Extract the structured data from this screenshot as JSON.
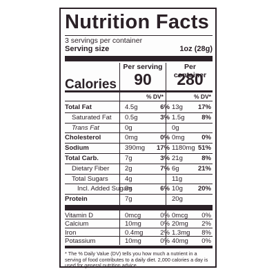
{
  "title": "Nutrition Facts",
  "servings_per_container": "3 servings per container",
  "serving_size_label": "Serving size",
  "serving_size_value": "1oz (28g)",
  "calories_label": "Calories",
  "per_serving_label": "Per serving",
  "per_container_label": "Per container",
  "calories_per_serving": "90",
  "calories_per_container": "280",
  "dv_header": "% DV*",
  "nutrients": [
    {
      "name": "Total Fat",
      "style": "bold",
      "serving_amount": "4.5g",
      "serving_dv": "6%",
      "container_amount": "13g",
      "container_dv": "17%"
    },
    {
      "name": "Saturated Fat",
      "style": "indent",
      "serving_amount": "0.5g",
      "serving_dv": "3%",
      "container_amount": "1.5g",
      "container_dv": "8%"
    },
    {
      "name": "Trans Fat",
      "style": "indent-italic",
      "serving_amount": "0g",
      "serving_dv": "",
      "container_amount": "0g",
      "container_dv": ""
    },
    {
      "name": "Cholesterol",
      "style": "bold",
      "serving_amount": "0mg",
      "serving_dv": "0%",
      "container_amount": "0mg",
      "container_dv": "0%"
    },
    {
      "name": "Sodium",
      "style": "bold",
      "serving_amount": "390mg",
      "serving_dv": "17%",
      "container_amount": "1180mg",
      "container_dv": "51%"
    },
    {
      "name": "Total Carb.",
      "style": "bold",
      "serving_amount": "7g",
      "serving_dv": "3%",
      "container_amount": "21g",
      "container_dv": "8%"
    },
    {
      "name": "Dietary Fiber",
      "style": "indent",
      "serving_amount": "2g",
      "serving_dv": "7%",
      "container_amount": "6g",
      "container_dv": "21%"
    },
    {
      "name": "Total Sugars",
      "style": "indent",
      "serving_amount": "4g",
      "serving_dv": "",
      "container_amount": "11g",
      "container_dv": ""
    },
    {
      "name": "Incl. Added Sugars",
      "style": "indent2",
      "serving_amount": "3g",
      "serving_dv": "6%",
      "container_amount": "10g",
      "container_dv": "20%"
    },
    {
      "name": "Protein",
      "style": "bold",
      "serving_amount": "7g",
      "serving_dv": "",
      "container_amount": "20g",
      "container_dv": ""
    }
  ],
  "vitamins": [
    {
      "name": "Vitamin D",
      "serving_amount": "0mcg",
      "serving_dv": "0%",
      "container_amount": "0mcg",
      "container_dv": "0%"
    },
    {
      "name": "Calcium",
      "serving_amount": "10mg",
      "serving_dv": "0%",
      "container_amount": "20mg",
      "container_dv": "2%"
    },
    {
      "name": "Iron",
      "serving_amount": "0.4mg",
      "serving_dv": "2%",
      "container_amount": "1.3mg",
      "container_dv": "8%"
    },
    {
      "name": "Potassium",
      "serving_amount": "10mg",
      "serving_dv": "0%",
      "container_amount": "40mg",
      "container_dv": "0%"
    }
  ],
  "footnote": "* The % Daily Value (DV) tells you how much a nutrient in a serving of food contributes to a daily diet. 2,000 calories a day is used for general nutrition advice."
}
